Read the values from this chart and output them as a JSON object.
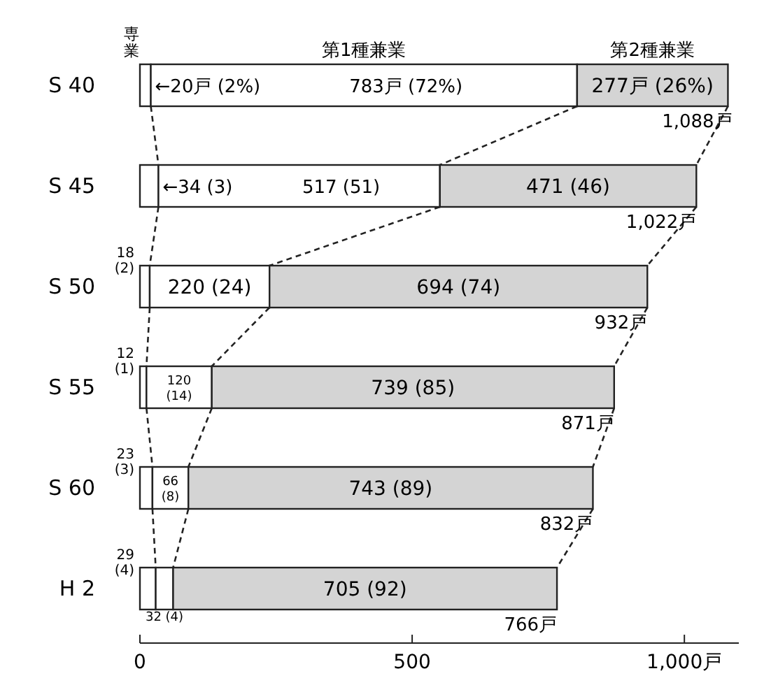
{
  "chart_data": {
    "type": "bar",
    "orientation": "horizontal",
    "stacked": true,
    "categories": [
      "S 40",
      "S 45",
      "S 50",
      "S 55",
      "S 60",
      "H 2"
    ],
    "series": [
      {
        "name": "専業",
        "color": "#ffffff",
        "values": [
          20,
          34,
          18,
          12,
          23,
          29
        ],
        "value_labels": [
          "←20戸 (2%)",
          "←34 (3)",
          "18 (2)",
          "12 (1)",
          "23 (3)",
          "29 (4)"
        ]
      },
      {
        "name": "第1種兼業",
        "color": "#ffffff",
        "values": [
          783,
          517,
          220,
          120,
          66,
          32
        ],
        "value_labels": [
          "783戸 (72%)",
          "517 (51)",
          "220 (24)",
          "120 (14)",
          "66 (8)",
          "32 (4)"
        ]
      },
      {
        "name": "第2種兼業",
        "color": "#d4d4d4",
        "values": [
          277,
          471,
          694,
          739,
          743,
          705
        ],
        "value_labels": [
          "277戸 (26%)",
          "471 (46)",
          "694 (74)",
          "739 (85)",
          "743 (89)",
          "705 (92)"
        ]
      }
    ],
    "annotations": [
      {
        "text": "1,088戸",
        "x": 1088,
        "y": "S 40"
      },
      {
        "text": "1,022戸",
        "x": 1022,
        "y": "S 45"
      },
      {
        "text": "932戸",
        "x": 932,
        "y": "S 50"
      },
      {
        "text": "871戸",
        "x": 871,
        "y": "S 55"
      },
      {
        "text": "832戸",
        "x": 832,
        "y": "S 60"
      },
      {
        "text": "766戸",
        "x": 766,
        "y": "H 2"
      }
    ],
    "xlim": [
      0,
      1100
    ],
    "xticks": [
      0,
      500,
      {
        "value": 1000,
        "label": "1,000戸"
      }
    ]
  }
}
